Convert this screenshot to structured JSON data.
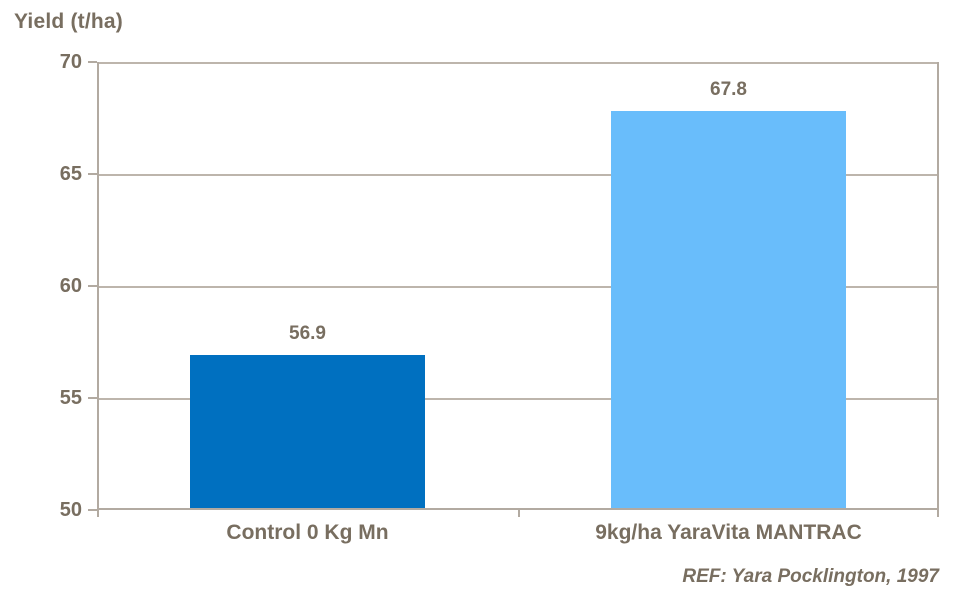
{
  "colors": {
    "text": "#786E60",
    "axis_border": "#B2AAA1",
    "gridline": "#BDB5AC",
    "background": "#FFFFFF"
  },
  "footer": {
    "reference": "REF: Yara Pocklington, 1997"
  },
  "chart_data": {
    "type": "bar",
    "title": "Yield (t/ha)",
    "ylabel": "Yield (t/ha)",
    "xlabel": "",
    "categories": [
      "Control 0 Kg Mn",
      "9kg/ha YaraVita MANTRAC"
    ],
    "values": [
      56.9,
      67.8
    ],
    "value_labels": [
      "56.9",
      "67.8"
    ],
    "bar_colors": [
      "#0070C0",
      "#69BDFB"
    ],
    "ylim": [
      50,
      70
    ],
    "yticks": [
      50,
      55,
      60,
      65,
      70
    ],
    "grid": true,
    "legend": "none",
    "annotation": "REF: Yara Pocklington, 1997"
  }
}
